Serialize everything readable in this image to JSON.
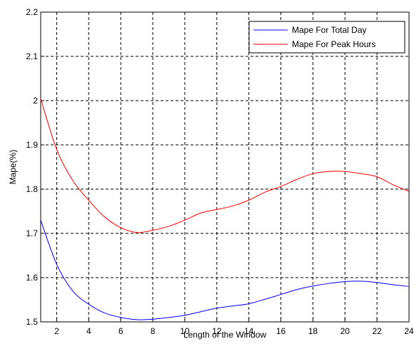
{
  "chart_data": {
    "type": "line",
    "title": "",
    "xlabel": "Length of the Window",
    "ylabel": "Mape(%)",
    "xlim": [
      1,
      24
    ],
    "ylim": [
      1.5,
      2.2
    ],
    "xticks": [
      2,
      4,
      6,
      8,
      10,
      12,
      14,
      16,
      18,
      20,
      22,
      24
    ],
    "yticks": [
      1.5,
      1.6,
      1.7,
      1.8,
      1.9,
      2,
      2.1,
      2.2
    ],
    "grid": true,
    "grid_style": "dashed",
    "legend_position": "top-right",
    "x": [
      1,
      2,
      3,
      4,
      5,
      6,
      7,
      8,
      9,
      10,
      11,
      12,
      13,
      14,
      15,
      16,
      17,
      18,
      19,
      20,
      21,
      22,
      23,
      24
    ],
    "series": [
      {
        "name": "Mape For Total Day",
        "color": "#0000ff",
        "values": [
          1.73,
          1.63,
          1.57,
          1.54,
          1.52,
          1.51,
          1.505,
          1.506,
          1.51,
          1.515,
          1.523,
          1.531,
          1.536,
          1.541,
          1.551,
          1.562,
          1.573,
          1.581,
          1.587,
          1.591,
          1.592,
          1.589,
          1.584,
          1.58
        ]
      },
      {
        "name": "Mape For Peak Hours",
        "color": "#ff0000",
        "values": [
          2.005,
          1.89,
          1.82,
          1.775,
          1.737,
          1.713,
          1.702,
          1.707,
          1.716,
          1.73,
          1.746,
          1.754,
          1.762,
          1.775,
          1.793,
          1.806,
          1.822,
          1.835,
          1.84,
          1.84,
          1.835,
          1.828,
          1.81,
          1.795
        ]
      }
    ]
  }
}
